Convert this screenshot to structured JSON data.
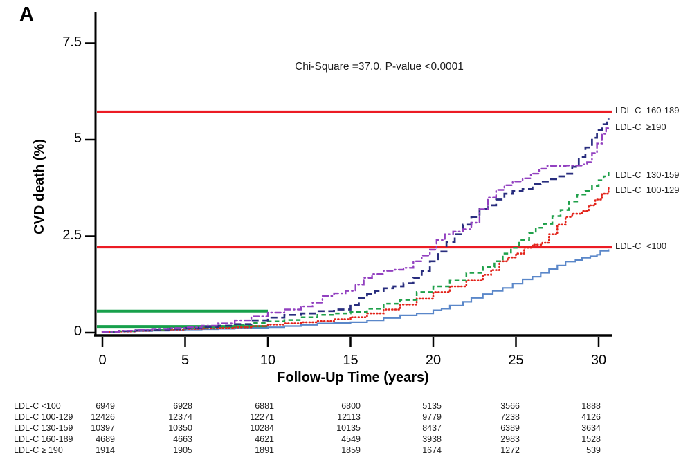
{
  "panel_label": "A",
  "chart_data": {
    "type": "line",
    "subtype": "cumulative-incidence-step-curves",
    "annotation": "Chi-Square =37.0, P-value <0.0001",
    "xlabel": "Follow-Up Time (years)",
    "ylabel": "CVD death (%)",
    "xlim": [
      0,
      30.8
    ],
    "ylim": [
      0,
      7.9
    ],
    "xticks": [
      0,
      5,
      10,
      15,
      20,
      25,
      30
    ],
    "yticks": [
      "0",
      "2.5",
      "5",
      "7.5"
    ],
    "ytick_values": [
      0,
      2.5,
      5,
      7.5
    ],
    "grid": false,
    "legend_position": "right-end-labels",
    "series": [
      {
        "name": "LDL-C <100",
        "end_label": "LDL-C  <100",
        "label_value": 2.24,
        "color": "#5a87c9",
        "style": "solid",
        "points": [
          [
            0,
            0.02
          ],
          [
            1,
            0.03
          ],
          [
            2,
            0.04
          ],
          [
            3,
            0.05
          ],
          [
            4,
            0.06
          ],
          [
            5,
            0.08
          ],
          [
            6,
            0.09
          ],
          [
            7,
            0.1
          ],
          [
            8,
            0.11
          ],
          [
            9,
            0.12
          ],
          [
            10,
            0.14
          ],
          [
            11,
            0.17
          ],
          [
            12,
            0.2
          ],
          [
            13,
            0.24
          ],
          [
            14,
            0.25
          ],
          [
            15,
            0.27
          ],
          [
            16,
            0.32
          ],
          [
            17,
            0.38
          ],
          [
            18,
            0.45
          ],
          [
            19,
            0.5
          ],
          [
            20,
            0.58
          ],
          [
            20.5,
            0.62
          ],
          [
            21,
            0.7
          ],
          [
            21.8,
            0.8
          ],
          [
            22.3,
            0.9
          ],
          [
            23,
            1.0
          ],
          [
            23.6,
            1.08
          ],
          [
            24.2,
            1.16
          ],
          [
            24.8,
            1.27
          ],
          [
            25.4,
            1.38
          ],
          [
            26,
            1.45
          ],
          [
            26.5,
            1.55
          ],
          [
            27,
            1.65
          ],
          [
            27.5,
            1.74
          ],
          [
            28,
            1.84
          ],
          [
            28.6,
            1.88
          ],
          [
            29,
            1.94
          ],
          [
            29.5,
            1.98
          ],
          [
            29.9,
            2.02
          ],
          [
            30.1,
            2.12
          ],
          [
            30.6,
            2.16
          ]
        ]
      },
      {
        "name": "LDL-C 100-129",
        "end_label": "LDL-C  100-129",
        "label_value": 3.7,
        "color": "#e2231a",
        "style": "dotted",
        "points": [
          [
            0,
            0.02
          ],
          [
            1,
            0.03
          ],
          [
            2,
            0.05
          ],
          [
            3,
            0.07
          ],
          [
            4,
            0.08
          ],
          [
            5,
            0.1
          ],
          [
            6,
            0.11
          ],
          [
            7,
            0.12
          ],
          [
            8,
            0.14
          ],
          [
            9,
            0.17
          ],
          [
            10,
            0.21
          ],
          [
            11,
            0.24
          ],
          [
            12,
            0.27
          ],
          [
            13,
            0.3
          ],
          [
            14,
            0.35
          ],
          [
            15,
            0.4
          ],
          [
            16,
            0.5
          ],
          [
            17,
            0.6
          ],
          [
            18,
            0.73
          ],
          [
            19,
            0.88
          ],
          [
            20,
            1.05
          ],
          [
            21,
            1.2
          ],
          [
            22,
            1.35
          ],
          [
            23,
            1.5
          ],
          [
            23.5,
            1.62
          ],
          [
            24,
            1.85
          ],
          [
            24.5,
            1.95
          ],
          [
            25,
            2.05
          ],
          [
            25.5,
            2.2
          ],
          [
            26,
            2.28
          ],
          [
            26.6,
            2.33
          ],
          [
            27,
            2.55
          ],
          [
            27.5,
            2.8
          ],
          [
            28,
            3.0
          ],
          [
            28.4,
            3.08
          ],
          [
            29,
            3.15
          ],
          [
            29.4,
            3.3
          ],
          [
            29.8,
            3.45
          ],
          [
            30.2,
            3.6
          ],
          [
            30.6,
            3.76
          ]
        ]
      },
      {
        "name": "LDL-C 130-159",
        "end_label": "LDL-C  130-159",
        "label_value": 4.08,
        "color": "#1fa04a",
        "style": "dashed",
        "points": [
          [
            0,
            0.02
          ],
          [
            1,
            0.04
          ],
          [
            2,
            0.06
          ],
          [
            3,
            0.08
          ],
          [
            4,
            0.1
          ],
          [
            5,
            0.12
          ],
          [
            6,
            0.14
          ],
          [
            7,
            0.17
          ],
          [
            8,
            0.2
          ],
          [
            9,
            0.25
          ],
          [
            10,
            0.29
          ],
          [
            11,
            0.33
          ],
          [
            12,
            0.4
          ],
          [
            13,
            0.46
          ],
          [
            14,
            0.5
          ],
          [
            15,
            0.54
          ],
          [
            16,
            0.62
          ],
          [
            17,
            0.75
          ],
          [
            18,
            0.85
          ],
          [
            19,
            1.05
          ],
          [
            20,
            1.2
          ],
          [
            21,
            1.35
          ],
          [
            22,
            1.55
          ],
          [
            23,
            1.7
          ],
          [
            23.7,
            1.85
          ],
          [
            24.2,
            2.05
          ],
          [
            24.7,
            2.2
          ],
          [
            25.2,
            2.4
          ],
          [
            25.8,
            2.58
          ],
          [
            26.2,
            2.72
          ],
          [
            26.7,
            2.82
          ],
          [
            27.2,
            3.02
          ],
          [
            27.7,
            3.18
          ],
          [
            28.2,
            3.4
          ],
          [
            28.7,
            3.58
          ],
          [
            29.2,
            3.68
          ],
          [
            29.6,
            3.8
          ],
          [
            30,
            3.95
          ],
          [
            30.3,
            4.05
          ],
          [
            30.6,
            4.16
          ]
        ]
      },
      {
        "name": "LDL-C 160-189",
        "end_label": "LDL-C  160-189",
        "label_value": 5.75,
        "color": "#282d7e",
        "style": "long-dash",
        "points": [
          [
            0,
            0.02
          ],
          [
            1,
            0.04
          ],
          [
            2,
            0.06
          ],
          [
            3,
            0.08
          ],
          [
            4,
            0.1
          ],
          [
            5,
            0.12
          ],
          [
            6,
            0.15
          ],
          [
            7,
            0.18
          ],
          [
            8,
            0.22
          ],
          [
            9,
            0.32
          ],
          [
            10,
            0.39
          ],
          [
            11,
            0.46
          ],
          [
            12,
            0.5
          ],
          [
            13,
            0.56
          ],
          [
            14,
            0.6
          ],
          [
            15,
            0.72
          ],
          [
            15.5,
            0.9
          ],
          [
            16,
            1.0
          ],
          [
            16.5,
            1.08
          ],
          [
            17,
            1.15
          ],
          [
            17.6,
            1.2
          ],
          [
            18.2,
            1.28
          ],
          [
            18.8,
            1.42
          ],
          [
            19.3,
            1.6
          ],
          [
            19.8,
            1.85
          ],
          [
            20.3,
            2.1
          ],
          [
            20.8,
            2.35
          ],
          [
            21.3,
            2.55
          ],
          [
            21.8,
            2.8
          ],
          [
            22.3,
            3.0
          ],
          [
            22.8,
            3.2
          ],
          [
            23.3,
            3.3
          ],
          [
            23.8,
            3.45
          ],
          [
            24.3,
            3.6
          ],
          [
            24.8,
            3.68
          ],
          [
            25.4,
            3.72
          ],
          [
            26,
            3.85
          ],
          [
            26.5,
            3.92
          ],
          [
            27,
            3.98
          ],
          [
            27.5,
            4.05
          ],
          [
            28,
            4.12
          ],
          [
            28.4,
            4.3
          ],
          [
            28.8,
            4.55
          ],
          [
            29.2,
            4.8
          ],
          [
            29.6,
            5.05
          ],
          [
            29.9,
            5.25
          ],
          [
            30.2,
            5.4
          ],
          [
            30.5,
            5.5
          ],
          [
            30.6,
            5.55
          ]
        ]
      },
      {
        "name": "LDL-C ≥190",
        "end_label": "LDL-C  ≥190",
        "label_value": 5.33,
        "color": "#9240c0",
        "style": "dash-dot",
        "points": [
          [
            0,
            0.02
          ],
          [
            1,
            0.05
          ],
          [
            2,
            0.08
          ],
          [
            3,
            0.1
          ],
          [
            4,
            0.12
          ],
          [
            5,
            0.14
          ],
          [
            6,
            0.18
          ],
          [
            7,
            0.24
          ],
          [
            8,
            0.32
          ],
          [
            9,
            0.42
          ],
          [
            10,
            0.52
          ],
          [
            11,
            0.6
          ],
          [
            12,
            0.68
          ],
          [
            12.7,
            0.78
          ],
          [
            13.3,
            0.95
          ],
          [
            14,
            1.02
          ],
          [
            14.7,
            1.08
          ],
          [
            15.3,
            1.25
          ],
          [
            15.8,
            1.42
          ],
          [
            16.3,
            1.52
          ],
          [
            17,
            1.6
          ],
          [
            17.6,
            1.63
          ],
          [
            18.2,
            1.68
          ],
          [
            18.8,
            1.85
          ],
          [
            19.3,
            2.0
          ],
          [
            19.8,
            2.15
          ],
          [
            20.2,
            2.4
          ],
          [
            20.7,
            2.55
          ],
          [
            21.2,
            2.62
          ],
          [
            21.8,
            2.68
          ],
          [
            22.3,
            2.85
          ],
          [
            22.8,
            3.2
          ],
          [
            23.3,
            3.5
          ],
          [
            23.8,
            3.7
          ],
          [
            24.3,
            3.82
          ],
          [
            24.8,
            3.92
          ],
          [
            25.4,
            4.0
          ],
          [
            25.9,
            4.12
          ],
          [
            26.4,
            4.25
          ],
          [
            26.9,
            4.32
          ],
          [
            28,
            4.33
          ],
          [
            29,
            4.36
          ],
          [
            29.3,
            4.42
          ],
          [
            29.6,
            4.65
          ],
          [
            29.9,
            4.9
          ],
          [
            30.2,
            5.15
          ],
          [
            30.45,
            5.3
          ],
          [
            30.6,
            5.36
          ]
        ]
      }
    ],
    "reference_lines": [
      {
        "value": 5.72,
        "x_range": [
          0,
          30.8
        ],
        "color": "#ec1c24"
      },
      {
        "value": 2.22,
        "x_range": [
          0,
          30.8
        ],
        "color": "#ec1c24"
      },
      {
        "value": 0.56,
        "x_range": [
          0,
          10
        ],
        "color": "#17a04b"
      },
      {
        "value": 0.16,
        "x_range": [
          0,
          10
        ],
        "color": "#17a04b"
      }
    ],
    "risk_table": {
      "time_points": [
        0,
        5,
        10,
        15,
        20,
        25,
        30
      ],
      "rows": [
        {
          "label": "LDL-C <100",
          "counts": [
            6949,
            6928,
            6881,
            6800,
            5135,
            3566,
            1888
          ]
        },
        {
          "label": "LDL-C 100-129",
          "counts": [
            12426,
            12374,
            12271,
            12113,
            9779,
            7238,
            4126
          ]
        },
        {
          "label": "LDL-C 130-159",
          "counts": [
            10397,
            10350,
            10284,
            10135,
            8437,
            6389,
            3634
          ]
        },
        {
          "label": "LDL-C 160-189",
          "counts": [
            4689,
            4663,
            4621,
            4549,
            3938,
            2983,
            1528
          ]
        },
        {
          "label": "LDL-C ≥ 190",
          "counts": [
            1914,
            1905,
            1891,
            1859,
            1674,
            1272,
            539
          ]
        }
      ]
    }
  }
}
